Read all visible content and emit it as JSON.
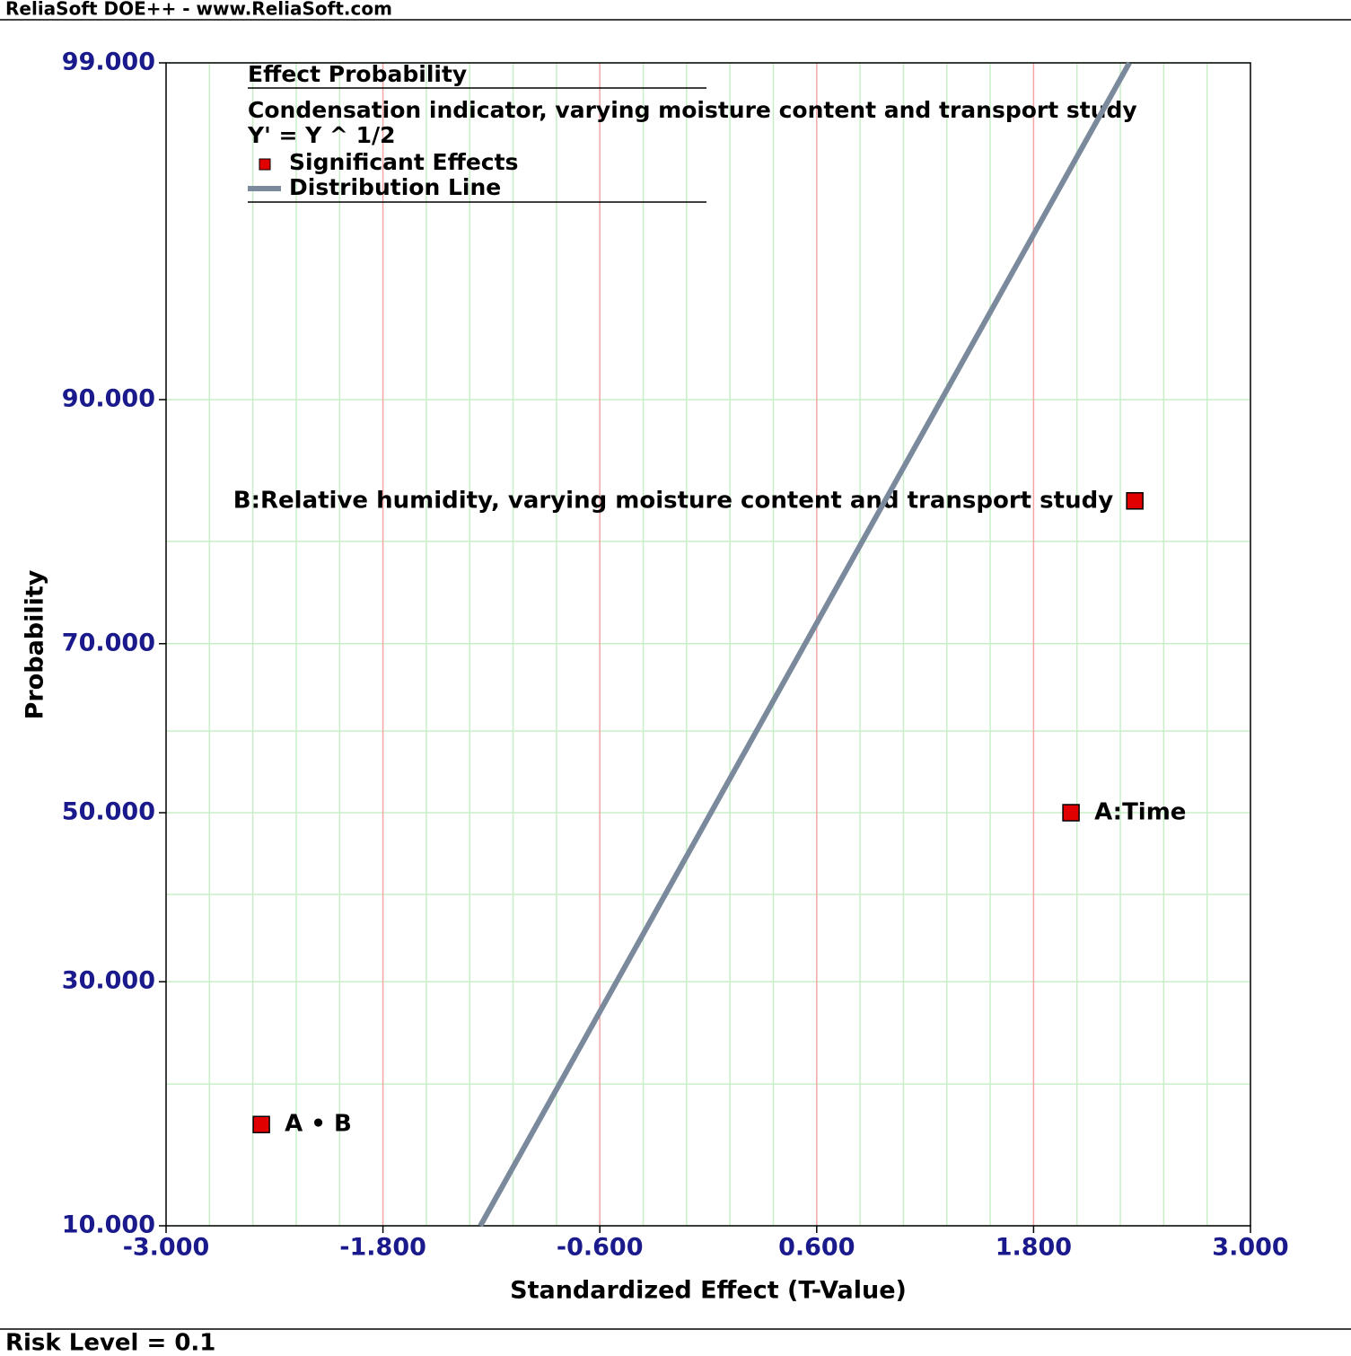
{
  "window_title": "ReliaSoft DOE++ - www.ReliaSoft.com",
  "footer": "Risk Level = 0.1",
  "chart_data": {
    "type": "scatter",
    "yscale": "probability",
    "title": "Effect Probability",
    "subtitle": [
      "Condensation indicator, varying moisture content and transport study",
      "Y' = Y ^ 1/2"
    ],
    "xlabel": "Standardized Effect (T-Value)",
    "ylabel": "Probability",
    "xlim": [
      -3,
      3
    ],
    "ylim": [
      10,
      99
    ],
    "xticks": [
      {
        "value": -3,
        "label": "-3.000"
      },
      {
        "value": -1.8,
        "label": "-1.800"
      },
      {
        "value": -0.6,
        "label": "-0.600"
      },
      {
        "value": 0.6,
        "label": "0.600"
      },
      {
        "value": 1.8,
        "label": "1.800"
      },
      {
        "value": 3,
        "label": "3.000"
      }
    ],
    "yticks": [
      {
        "value": 10,
        "label": "10.000"
      },
      {
        "value": 30,
        "label": "30.000"
      },
      {
        "value": 50,
        "label": "50.000"
      },
      {
        "value": 70,
        "label": "70.000"
      },
      {
        "value": 90,
        "label": "90.000"
      },
      {
        "value": 99,
        "label": "99.000"
      }
    ],
    "x_minor_grid": [
      -2.76,
      -2.52,
      -2.28,
      -2.04,
      -1.56,
      -1.32,
      -1.08,
      -0.84,
      -0.36,
      -0.12,
      0.12,
      0.36,
      0.84,
      1.08,
      1.32,
      1.56,
      2.04,
      2.28,
      2.52,
      2.76
    ],
    "y_minor_grid": [
      20,
      40,
      60,
      80
    ],
    "grid": true,
    "major_x_grid_color": "#f4a6a6",
    "grid_color": "#c8efc8",
    "series": [
      {
        "name": "Significant Effects",
        "mode": "markers",
        "color": "#e00000",
        "x": [
          2.007,
          2.36,
          -2.473
        ],
        "values": [
          50,
          83.333,
          16.667
        ],
        "point_labels": [
          "A:Time",
          "B:Relative humidity, varying moisture content and transport study",
          "A • B"
        ]
      },
      {
        "name": "Distribution Line",
        "mode": "line",
        "color": "#7a8a9c",
        "x": [
          -1.261,
          2.33
        ],
        "values": [
          10,
          99
        ]
      }
    ]
  }
}
